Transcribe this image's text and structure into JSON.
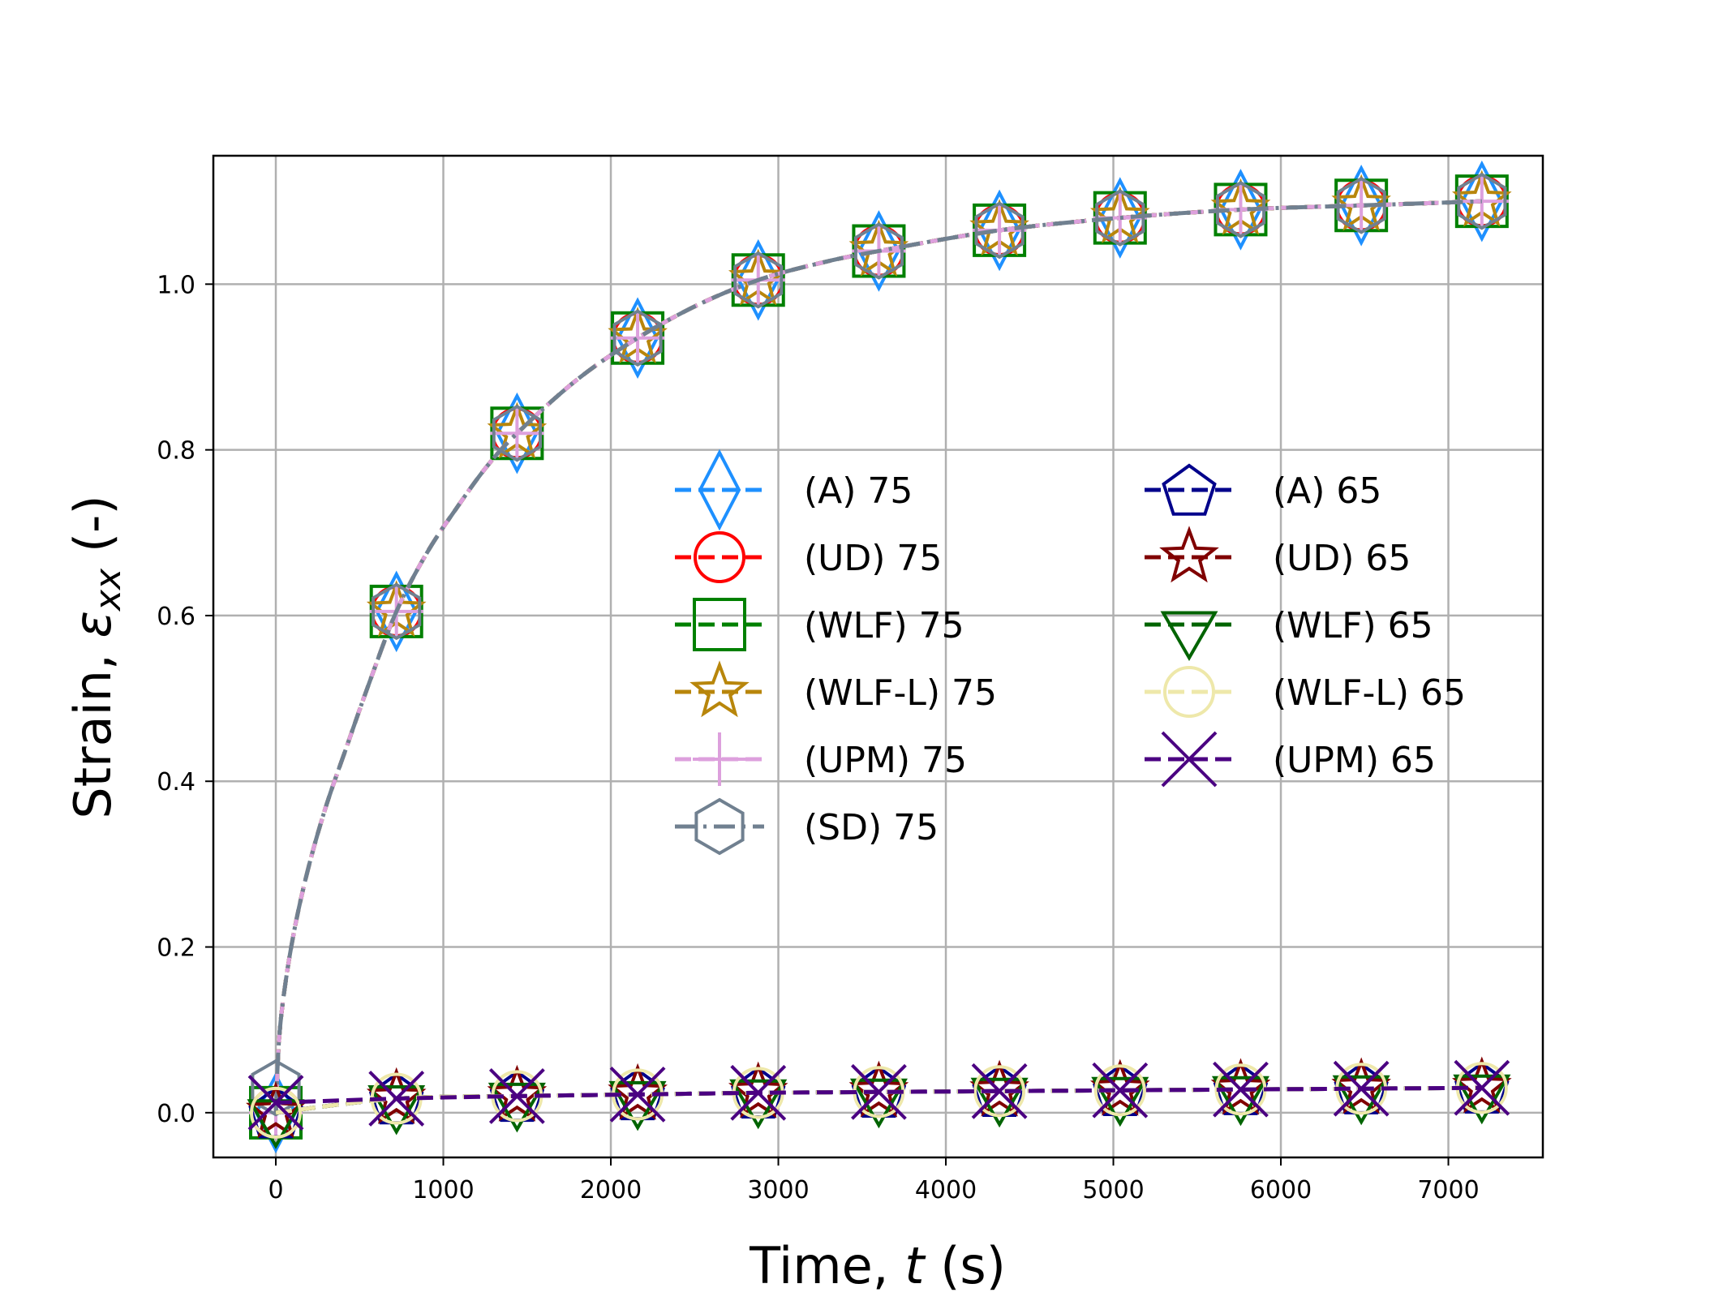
{
  "chart_data": {
    "type": "line",
    "title": "",
    "xlabel": "Time, t (s)",
    "xlabel_parts": {
      "pre": "Time, ",
      "var": "t",
      "post": " (s)"
    },
    "ylabel": "Strain, εxx (-)",
    "ylabel_parts": {
      "pre": "Strain, ",
      "var": "ε",
      "sub": "xx",
      "post": " (-)"
    },
    "xlim": [
      -373,
      7564
    ],
    "ylim": [
      -0.054,
      1.155
    ],
    "xticks": [
      0,
      1000,
      2000,
      3000,
      4000,
      5000,
      6000,
      7000
    ],
    "xtick_labels": [
      "0",
      "1000",
      "2000",
      "3000",
      "4000",
      "5000",
      "6000",
      "7000"
    ],
    "yticks": [
      0.0,
      0.2,
      0.4,
      0.6,
      0.8,
      1.0
    ],
    "ytick_labels": [
      "0.0",
      "0.2",
      "0.4",
      "0.6",
      "0.8",
      "1.0"
    ],
    "grid": true,
    "legend_placement": "center, two columns",
    "x": [
      0,
      720,
      1440,
      2160,
      2880,
      3600,
      4320,
      5040,
      5760,
      6480,
      7200
    ],
    "curve_75": {
      "x": [
        0,
        20,
        60,
        120,
        200,
        300,
        420,
        560,
        720,
        900,
        1080,
        1260,
        1440,
        1800,
        2160,
        2520,
        2880,
        3240,
        3600,
        4320,
        5040,
        5760,
        6480,
        7200
      ],
      "y": [
        0.0,
        0.09,
        0.16,
        0.23,
        0.3,
        0.37,
        0.44,
        0.52,
        0.605,
        0.675,
        0.73,
        0.78,
        0.82,
        0.885,
        0.935,
        0.975,
        1.005,
        1.025,
        1.04,
        1.065,
        1.08,
        1.09,
        1.095,
        1.1
      ]
    },
    "series": [
      {
        "name": "(A) 75",
        "color": "#1e90ff",
        "marker": "thin-diamond",
        "dash": "dashed",
        "values": [
          0.0,
          0.605,
          0.82,
          0.935,
          1.005,
          1.04,
          1.065,
          1.08,
          1.09,
          1.095,
          1.1
        ]
      },
      {
        "name": "(UD) 75",
        "color": "#ff0000",
        "marker": "circle",
        "dash": "dashed",
        "values": [
          0.0,
          0.605,
          0.82,
          0.935,
          1.005,
          1.04,
          1.065,
          1.08,
          1.09,
          1.095,
          1.1
        ]
      },
      {
        "name": "(WLF) 75",
        "color": "#008000",
        "marker": "square",
        "dash": "dashed",
        "values": [
          0.0,
          0.605,
          0.82,
          0.935,
          1.005,
          1.04,
          1.065,
          1.08,
          1.09,
          1.095,
          1.1
        ]
      },
      {
        "name": "(WLF-L) 75",
        "color": "#b8860b",
        "marker": "star",
        "dash": "dashed",
        "values": [
          0.0,
          0.605,
          0.82,
          0.935,
          1.005,
          1.04,
          1.065,
          1.08,
          1.09,
          1.095,
          1.1
        ]
      },
      {
        "name": "(UPM) 75",
        "color": "#dda0dd",
        "marker": "plus",
        "dash": "dashed",
        "values": [
          0.0,
          0.605,
          0.82,
          0.935,
          1.005,
          1.04,
          1.065,
          1.08,
          1.09,
          1.095,
          1.1
        ]
      },
      {
        "name": "(SD) 75",
        "color": "#708090",
        "marker": "hexagon",
        "dash": "dashdot",
        "values": [
          0.03,
          0.605,
          0.82,
          0.935,
          1.005,
          1.04,
          1.065,
          1.08,
          1.09,
          1.095,
          1.1
        ]
      },
      {
        "name": "(A) 65",
        "color": "#00008b",
        "marker": "pentagon",
        "dash": "dashed",
        "values": [
          0.0,
          0.017,
          0.02,
          0.022,
          0.024,
          0.025,
          0.026,
          0.027,
          0.028,
          0.029,
          0.03
        ]
      },
      {
        "name": "(UD) 65",
        "color": "#800000",
        "marker": "star",
        "dash": "dashed",
        "values": [
          0.0,
          0.017,
          0.02,
          0.022,
          0.024,
          0.025,
          0.026,
          0.027,
          0.028,
          0.029,
          0.03
        ]
      },
      {
        "name": "(WLF) 65",
        "color": "#006400",
        "marker": "triangle-down",
        "dash": "dashed",
        "values": [
          0.0,
          0.017,
          0.02,
          0.022,
          0.024,
          0.025,
          0.026,
          0.027,
          0.028,
          0.029,
          0.03
        ]
      },
      {
        "name": "(WLF-L) 65",
        "color": "#eee8aa",
        "marker": "circle",
        "dash": "dashed",
        "values": [
          0.0,
          0.017,
          0.02,
          0.022,
          0.024,
          0.025,
          0.026,
          0.027,
          0.028,
          0.029,
          0.03
        ]
      },
      {
        "name": "(UPM) 65",
        "color": "#4b0082",
        "marker": "x",
        "dash": "dashed",
        "values": [
          0.012,
          0.017,
          0.02,
          0.022,
          0.024,
          0.025,
          0.026,
          0.027,
          0.028,
          0.029,
          0.03
        ]
      }
    ]
  }
}
